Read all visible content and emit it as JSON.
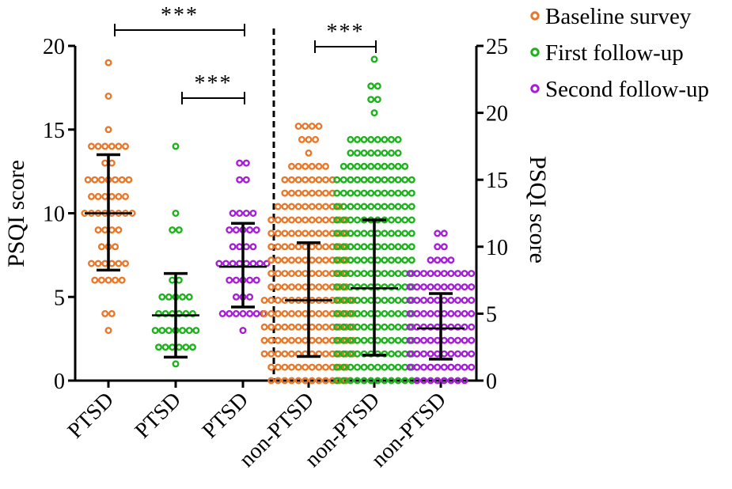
{
  "chart_data": {
    "type": "scatter",
    "subtype": "dot-plot-with-mean-sd",
    "categories": [
      "PTSD",
      "PTSD",
      "PTSD",
      "non-PTSD",
      "non-PTSD",
      "non-PTSD"
    ],
    "y_left": {
      "label": "PSQI score",
      "ylim": [
        0,
        20
      ],
      "ticks": [
        0,
        5,
        10,
        15,
        20
      ]
    },
    "y_right": {
      "label": "PSQI score",
      "ylim": [
        0,
        25
      ],
      "ticks": [
        0,
        5,
        10,
        15,
        20,
        25
      ]
    },
    "divider": "dashed vertical line between PTSD and non-PTSD groups",
    "grid": false,
    "legend_position": "top-right",
    "legend": [
      {
        "label": "Baseline survey",
        "color": "#E8792B"
      },
      {
        "label": "First follow-up",
        "color": "#1DB31D"
      },
      {
        "label": "Second follow-up",
        "color": "#A51FD6"
      }
    ],
    "groups": [
      {
        "category": "PTSD",
        "series": "Baseline survey",
        "axis": "left",
        "color": "#E8792B",
        "mean": 10.0,
        "sd_low": 6.6,
        "sd_high": 13.5,
        "counts": {
          "3": 1,
          "4": 2,
          "6": 5,
          "7": 6,
          "8": 3,
          "9": 4,
          "10": 8,
          "11": 6,
          "12": 7,
          "13": 2,
          "14": 6,
          "15": 1,
          "17": 1,
          "19": 1
        }
      },
      {
        "category": "PTSD",
        "series": "First follow-up",
        "axis": "left",
        "color": "#1DB31D",
        "mean": 3.9,
        "sd_low": 1.4,
        "sd_high": 6.4,
        "counts": {
          "1": 1,
          "2": 6,
          "3": 7,
          "4": 6,
          "5": 5,
          "6": 2,
          "9": 2,
          "10": 1,
          "14": 1
        }
      },
      {
        "category": "PTSD",
        "series": "Second follow-up",
        "axis": "left",
        "color": "#A51FD6",
        "mean": 6.8,
        "sd_low": 4.4,
        "sd_high": 9.4,
        "counts": {
          "3": 1,
          "4": 7,
          "5": 3,
          "6": 5,
          "7": 8,
          "8": 4,
          "9": 5,
          "10": 4,
          "12": 2,
          "13": 2
        }
      },
      {
        "category": "non-PTSD",
        "series": "Baseline survey",
        "axis": "right",
        "color": "#E8792B",
        "mean": 6.0,
        "sd_low": 1.8,
        "sd_high": 10.3,
        "counts": {
          "0": 12,
          "1": 12,
          "2": 14,
          "3": 14,
          "4": 14,
          "5": 14,
          "6": 14,
          "7": 12,
          "8": 12,
          "9": 12,
          "10": 12,
          "11": 12,
          "12": 12,
          "13": 10,
          "14": 8,
          "15": 8,
          "16": 6,
          "17": 1,
          "18": 3,
          "19": 4
        }
      },
      {
        "category": "non-PTSD",
        "series": "First follow-up",
        "axis": "right",
        "color": "#1DB31D",
        "mean": 6.9,
        "sd_low": 1.9,
        "sd_high": 12.0,
        "counts": {
          "0": 12,
          "1": 12,
          "2": 12,
          "3": 12,
          "4": 12,
          "5": 12,
          "6": 12,
          "7": 12,
          "8": 12,
          "9": 12,
          "10": 12,
          "11": 12,
          "12": 12,
          "13": 12,
          "14": 12,
          "15": 12,
          "16": 10,
          "17": 8,
          "18": 8,
          "20": 1,
          "21": 2,
          "22": 2,
          "24": 1
        }
      },
      {
        "category": "non-PTSD",
        "series": "Second follow-up",
        "axis": "right",
        "color": "#A51FD6",
        "mean": 3.9,
        "sd_low": 1.6,
        "sd_high": 6.5,
        "counts": {
          "0": 8,
          "1": 10,
          "2": 10,
          "3": 10,
          "4": 10,
          "5": 10,
          "6": 10,
          "7": 10,
          "8": 10,
          "9": 4,
          "10": 2,
          "11": 2
        }
      }
    ],
    "significance": [
      {
        "from_group": 0,
        "to_group": 2,
        "label": "***"
      },
      {
        "from_group": 1,
        "to_group": 2,
        "label": "***"
      },
      {
        "from_group": 3,
        "to_group": 4,
        "label": "***"
      }
    ]
  }
}
